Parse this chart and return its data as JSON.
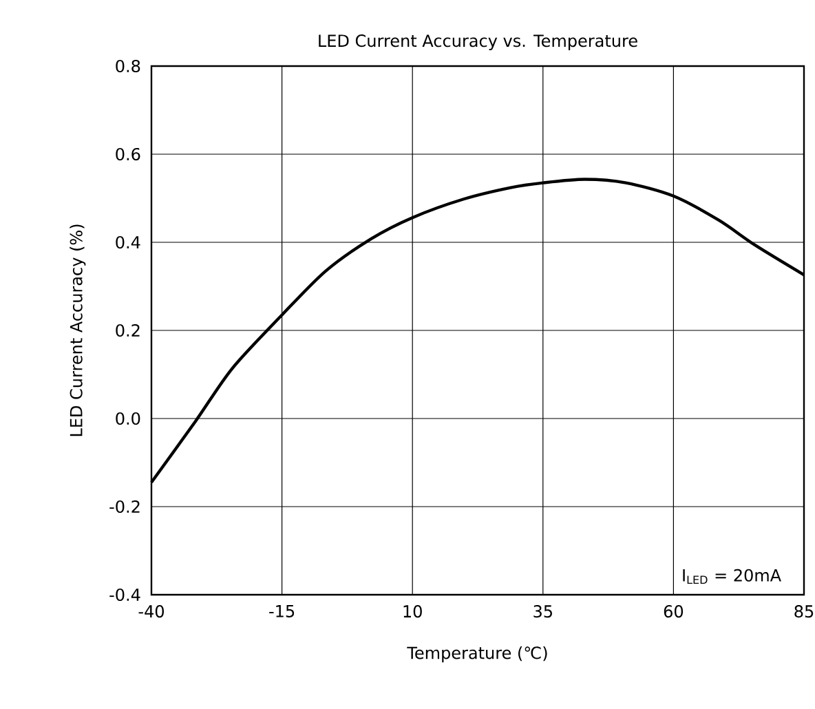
{
  "chart_data": {
    "type": "line",
    "title": "LED Current Accuracy vs. Temperature",
    "xlabel": "Temperature (℃)",
    "ylabel": "LED Current Accuracy  (%)",
    "x": [
      -40,
      -31.6,
      -24.5,
      -15,
      -6.6,
      2.1,
      10,
      19.8,
      28.8,
      35,
      43,
      50.9,
      60,
      68.7,
      75.7,
      85
    ],
    "series": [
      {
        "color": "#000000",
        "values": [
          -0.145,
          -0.007,
          0.114,
          0.235,
          0.335,
          0.408,
          0.456,
          0.498,
          0.524,
          0.535,
          0.543,
          0.535,
          0.505,
          0.45,
          0.393,
          0.326
        ]
      }
    ],
    "xlim": [
      -40,
      85
    ],
    "xticks": [
      -40,
      -15,
      10,
      35,
      60,
      85
    ],
    "ylim": [
      -0.4,
      0.8
    ],
    "yticks": [
      {
        "value": -0.4,
        "label": "-0.4"
      },
      {
        "value": -0.2,
        "label": "-0.2"
      },
      {
        "value": 0,
        "label": "0.0"
      },
      {
        "value": 0.2,
        "label": "0.2"
      },
      {
        "value": 0.4,
        "label": "0.4"
      },
      {
        "value": 0.6,
        "label": "0.6"
      },
      {
        "value": 0.8,
        "label": "0.8"
      }
    ],
    "grid": true,
    "annotations": [
      "I$_{LED}$ = 20mA"
    ]
  }
}
